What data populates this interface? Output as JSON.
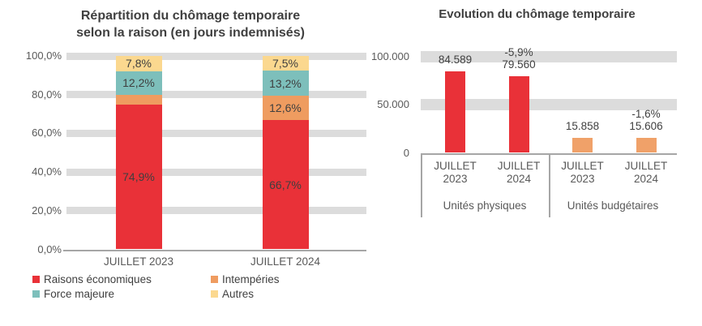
{
  "colors": {
    "red": "#e93138",
    "orange": "#ef9c60",
    "orange_right": "#f0a169",
    "teal": "#7dbfbb",
    "yellow": "#fbd88f",
    "gridline": "#dcdcdc",
    "axis": "#a6a6a6",
    "axis_text": "#595959",
    "title_text": "#404040"
  },
  "chart_data": [
    {
      "type": "bar",
      "stacked": true,
      "percent": true,
      "title": "Répartition du chômage temporaire selon la raison (en jours indemnisés)",
      "title_lines": [
        "Répartition du chômage temporaire",
        "selon la raison (en jours indemnisés)"
      ],
      "categories": [
        "JUILLET 2023",
        "JUILLET 2024"
      ],
      "series": [
        {
          "name": "Raisons économiques",
          "color": "#e93138",
          "values": [
            74.9,
            66.7
          ],
          "labels": [
            "74,9%",
            "66,7%"
          ]
        },
        {
          "name": "Intempéries",
          "color": "#ef9c60",
          "values": [
            5.1,
            12.6
          ],
          "labels": [
            "",
            "12,6%"
          ]
        },
        {
          "name": "Force majeure",
          "color": "#7dbfbb",
          "values": [
            12.2,
            13.2
          ],
          "labels": [
            "12,2%",
            "13,2%"
          ]
        },
        {
          "name": "Autres",
          "color": "#fbd88f",
          "values": [
            7.8,
            7.5
          ],
          "labels": [
            "7,8%",
            "7,5%"
          ]
        }
      ],
      "y_axis": {
        "min": 0,
        "max": 100,
        "ticks": [
          "100,0%",
          "80,0%",
          "60,0%",
          "40,0%",
          "20,0%",
          "0,0%"
        ]
      },
      "grid": "horizontal-bands",
      "legend_position": "bottom",
      "legend": [
        "Raisons économiques",
        "Intempéries",
        "Force majeure",
        "Autres"
      ]
    },
    {
      "type": "bar",
      "title": "Evolution du chômage temporaire",
      "y_axis": {
        "min": 0,
        "max": 100000,
        "ticks": [
          {
            "label": "100.000",
            "value": 100000
          },
          {
            "label": "50.000",
            "value": 50000
          },
          {
            "label": "0",
            "value": 0
          }
        ]
      },
      "grid": "horizontal-bands",
      "groups": [
        {
          "label": "Unités physiques",
          "color": "#e93138",
          "bars": [
            {
              "category": "JUILLET 2023",
              "value": 84589,
              "value_label": "84.589",
              "delta_label": ""
            },
            {
              "category": "JUILLET 2024",
              "value": 79560,
              "value_label": "79.560",
              "delta_label": "-5,9%"
            }
          ]
        },
        {
          "label": "Unités budgétaires",
          "color": "#f0a169",
          "bars": [
            {
              "category": "JUILLET 2023",
              "value": 15858,
              "value_label": "15.858",
              "delta_label": ""
            },
            {
              "category": "JUILLET 2024",
              "value": 15606,
              "value_label": "15.606",
              "delta_label": "-1,6%"
            }
          ]
        }
      ]
    }
  ]
}
